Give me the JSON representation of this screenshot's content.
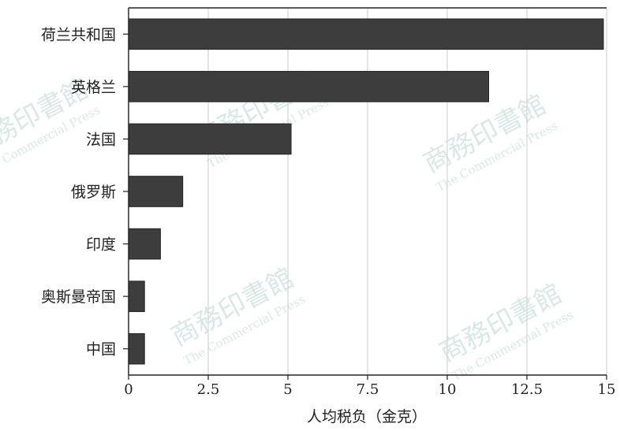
{
  "chart_data": {
    "type": "bar",
    "orientation": "horizontal",
    "categories": [
      "荷兰共和国",
      "英格兰",
      "法国",
      "俄罗斯",
      "印度",
      "奥斯曼帝国",
      "中国"
    ],
    "values": [
      14.9,
      11.3,
      5.1,
      1.7,
      1.0,
      0.5,
      0.5
    ],
    "xlabel": "人均税负（金克）",
    "xlim": [
      0,
      15
    ],
    "xticks": [
      0,
      2.5,
      5,
      7.5,
      10,
      12.5,
      15
    ],
    "xtick_labels": [
      "0",
      "2.5",
      "5",
      "7.5",
      "10",
      "12.5",
      "15"
    ],
    "grid": "vertical",
    "bar_color": "#3d3d3d"
  },
  "watermark": {
    "chinese": "商務印書館",
    "english": "The Commercial Press"
  }
}
